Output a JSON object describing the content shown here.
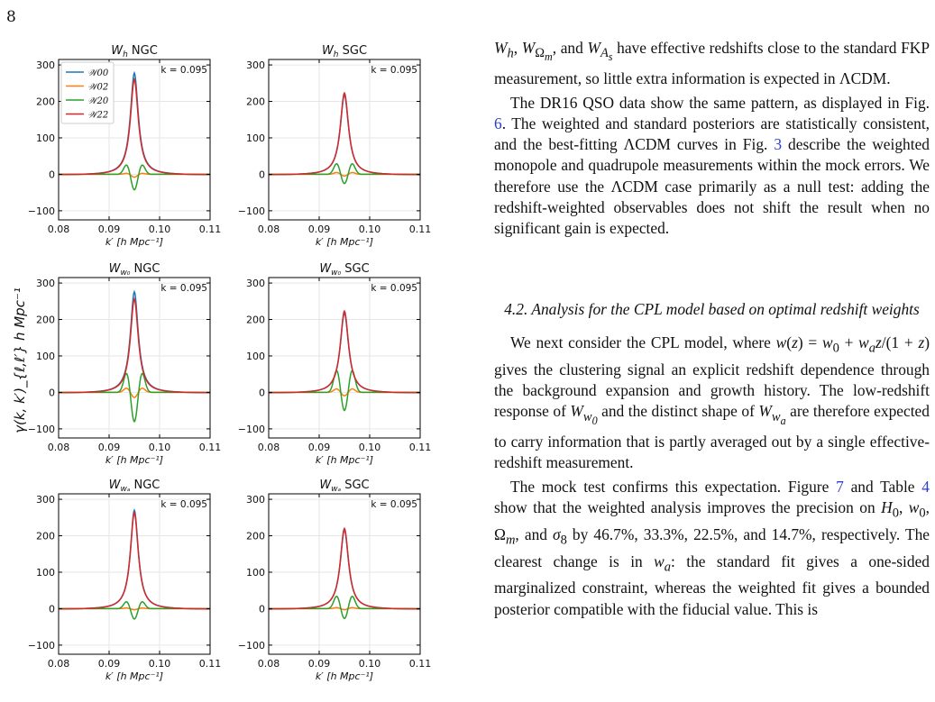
{
  "page_number": "8",
  "figure": {
    "y_axis_label": "γ(k, k′)_{ℓ,ℓ′} h Mpc⁻¹",
    "legend": [
      "𝒲00",
      "𝒲02",
      "𝒲20",
      "𝒲22"
    ],
    "colors": {
      "W00": "#1f77b4",
      "W02": "#ff7f0e",
      "W20": "#2ca02c",
      "W22": "#d62728"
    },
    "panels": [
      {
        "title": "W_h NGC"
      },
      {
        "title": "W_h SGC"
      },
      {
        "title": "W_w0 NGC"
      },
      {
        "title": "W_w0 SGC"
      },
      {
        "title": "W_wa NGC"
      },
      {
        "title": "W_wa SGC"
      }
    ],
    "k_annotation": "k = 0.095",
    "x_label": "k′ [h Mpc⁻¹]"
  },
  "chart_data": {
    "type": "line",
    "x_ticks": [
      "0.08",
      "0.09",
      "0.10",
      "0.11"
    ],
    "y_ticks": [
      "−100",
      "0",
      "100",
      "200",
      "300"
    ],
    "xlim": [
      0.08,
      0.11
    ],
    "ylim": [
      -125,
      315
    ],
    "grid": true,
    "legend_position": "top-left",
    "panels": [
      {
        "title": "W_h NGC",
        "series": [
          {
            "name": "𝒲00",
            "peak": 280,
            "width": 0.00095
          },
          {
            "name": "𝒲02",
            "center": -8,
            "side": 3,
            "shape": "wiggle"
          },
          {
            "name": "𝒲20",
            "center": -45,
            "side": 27,
            "shape": "wiggle"
          },
          {
            "name": "𝒲22",
            "peak": 262,
            "width": 0.00095
          }
        ]
      },
      {
        "title": "W_h SGC",
        "series": [
          {
            "name": "𝒲00",
            "peak": 220,
            "width": 0.001
          },
          {
            "name": "𝒲02",
            "center": -5,
            "side": 5,
            "shape": "wiggle"
          },
          {
            "name": "𝒲20",
            "center": -28,
            "side": 30,
            "shape": "wiggle"
          },
          {
            "name": "𝒲22",
            "peak": 225,
            "width": 0.001
          }
        ]
      },
      {
        "title": "W_w0 NGC",
        "series": [
          {
            "name": "𝒲00",
            "peak": 278,
            "width": 0.00095
          },
          {
            "name": "𝒲02",
            "center": -15,
            "side": 12,
            "shape": "wiggle"
          },
          {
            "name": "𝒲20",
            "center": -85,
            "side": 55,
            "shape": "wiggle"
          },
          {
            "name": "𝒲22",
            "peak": 258,
            "width": 0.00095
          }
        ]
      },
      {
        "title": "W_w0 SGC",
        "series": [
          {
            "name": "𝒲00",
            "peak": 220,
            "width": 0.001
          },
          {
            "name": "𝒲02",
            "center": -10,
            "side": 10,
            "shape": "wiggle"
          },
          {
            "name": "𝒲20",
            "center": -55,
            "side": 62,
            "shape": "wiggle"
          },
          {
            "name": "𝒲22",
            "peak": 225,
            "width": 0.001
          }
        ]
      },
      {
        "title": "W_wa NGC",
        "series": [
          {
            "name": "𝒲00",
            "peak": 272,
            "width": 0.00095
          },
          {
            "name": "𝒲02",
            "center": -3,
            "side": 2,
            "shape": "wiggle"
          },
          {
            "name": "𝒲20",
            "center": -30,
            "side": 20,
            "shape": "wiggle"
          },
          {
            "name": "𝒲22",
            "peak": 265,
            "width": 0.00095
          }
        ]
      },
      {
        "title": "W_wa SGC",
        "series": [
          {
            "name": "𝒲00",
            "peak": 218,
            "width": 0.001
          },
          {
            "name": "𝒲02",
            "center": -3,
            "side": 3,
            "shape": "wiggle"
          },
          {
            "name": "𝒲20",
            "center": -30,
            "side": 35,
            "shape": "wiggle"
          },
          {
            "name": "𝒲22",
            "peak": 222,
            "width": 0.001
          }
        ]
      }
    ]
  },
  "text": {
    "p1_a": ", and ",
    "p1_b": " have effective redshifts close to the standard FKP measurement, so little extra information is expected in ΛCDM.",
    "p2_a": "The DR16 QSO data show the same pattern, as displayed in Fig. ",
    "p2_fig6": "6",
    "p2_b": ". The weighted and standard posteriors are statistically consistent, and the best-fitting ΛCDM curves in Fig. ",
    "p2_fig3": "3",
    "p2_c": " describe the weighted monopole and quadrupole measurements within the mock errors. We therefore use the ΛCDM case primarily as a null test: adding the redshift-weighted observables does not shift the result when no significant gain is expected.",
    "section_title": "4.2.  Analysis for the CPL model based on optimal redshift weights",
    "p3_a": "We next consider the CPL model, where ",
    "p3_b": " gives the clustering signal an explicit redshift dependence through the background expansion and growth history. The low-redshift response of ",
    "p3_c": " and the distinct shape of ",
    "p3_d": " are therefore expected to carry information that is partly averaged out by a single effective-redshift measurement.",
    "p4_a": "The mock test confirms this expectation. Figure ",
    "p4_fig7": "7",
    "p4_b": " and Table ",
    "p4_tab4": "4",
    "p4_c": " show that the weighted analysis improves the precision on ",
    "p4_d": " by 46.7%, 33.3%, 22.5%, and 14.7%, respectively. The clearest change is in ",
    "p4_e": ": the standard fit gives a one-sided marginalized constraint, whereas the weighted fit gives a bounded posterior compatible with the fiducial value. This is"
  }
}
